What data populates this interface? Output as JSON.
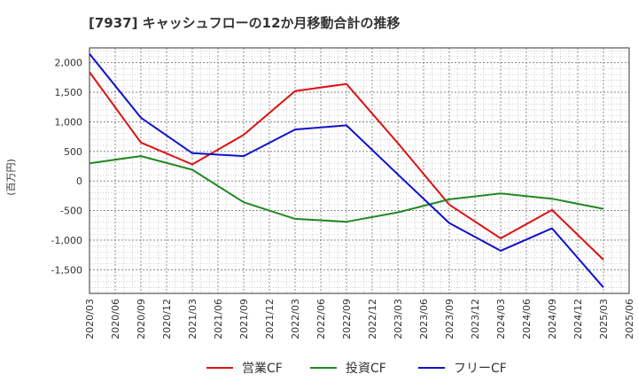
{
  "chart_data": {
    "type": "line",
    "title": "[7937]  キャッシュフローの12か月移動合計の推移",
    "ylabel": "(百万円)",
    "xlabel": "",
    "ylim": [
      -1900,
      2250
    ],
    "y_ticks": [
      2000,
      1500,
      1000,
      500,
      0,
      -500,
      -1000,
      -1500
    ],
    "y_tick_labels": [
      "2,000",
      "1,500",
      "1,000",
      "500",
      "0",
      "-500",
      "-1,000",
      "-1,500"
    ],
    "x_tick_labels": [
      "2020/03",
      "2020/06",
      "2020/09",
      "2020/12",
      "2021/03",
      "2021/06",
      "2021/09",
      "2021/12",
      "2022/03",
      "2022/06",
      "2022/09",
      "2022/12",
      "2023/03",
      "2023/06",
      "2023/09",
      "2023/12",
      "2024/03",
      "2024/06",
      "2024/09",
      "2024/12",
      "2025/03",
      "2025/06"
    ],
    "x": [
      "2020/03",
      "2020/09",
      "2021/03",
      "2021/09",
      "2022/03",
      "2022/09",
      "2023/03",
      "2023/09",
      "2024/03",
      "2024/09",
      "2025/03"
    ],
    "series": [
      {
        "name": "営業CF",
        "color": "#dd1111",
        "values": [
          1840,
          650,
          280,
          780,
          1520,
          1640,
          640,
          -400,
          -970,
          -490,
          -1330
        ]
      },
      {
        "name": "投資CF",
        "color": "#228822",
        "values": [
          300,
          420,
          190,
          -360,
          -640,
          -690,
          -530,
          -310,
          -210,
          -300,
          -470
        ]
      },
      {
        "name": "フリーCF",
        "color": "#1111cc",
        "values": [
          2150,
          1070,
          470,
          420,
          870,
          940,
          110,
          -710,
          -1180,
          -800,
          -1800
        ]
      }
    ],
    "grid": true,
    "legend_position": "bottom"
  }
}
